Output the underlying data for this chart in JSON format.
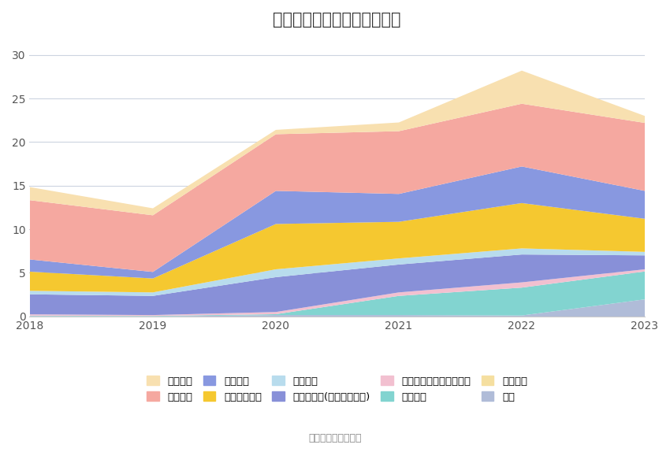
{
  "title": "历年主要负债堆积图（亿元）",
  "years": [
    2018,
    2019,
    2020,
    2021,
    2022,
    2023
  ],
  "series": [
    {
      "name": "其它",
      "color": "#b0bcd8",
      "values": [
        0.08,
        0.05,
        0.2,
        0.2,
        0.15,
        2.0
      ]
    },
    {
      "name": "应付债券",
      "color": "#f5dfa0",
      "values": [
        0.0,
        0.0,
        0.0,
        0.0,
        0.0,
        0.0
      ]
    },
    {
      "name": "长期借款",
      "color": "#82d4d0",
      "values": [
        0.05,
        0.05,
        0.1,
        2.2,
        3.2,
        3.2
      ]
    },
    {
      "name": "一年内到期的非流动负债",
      "color": "#f2c0d0",
      "values": [
        0.15,
        0.1,
        0.25,
        0.4,
        0.6,
        0.25
      ]
    },
    {
      "name": "其他应付款(含利息和股利)",
      "color": "#8890d8",
      "values": [
        2.3,
        2.2,
        4.0,
        3.2,
        3.2,
        1.6
      ]
    },
    {
      "name": "应交税费",
      "color": "#b8dced",
      "values": [
        0.4,
        0.4,
        0.9,
        0.7,
        0.7,
        0.4
      ]
    },
    {
      "name": "应付职工薪酬",
      "color": "#f5c830",
      "values": [
        2.2,
        1.6,
        5.2,
        4.2,
        5.2,
        3.8
      ]
    },
    {
      "name": "合同负债",
      "color": "#8898e0",
      "values": [
        1.4,
        0.75,
        3.8,
        3.2,
        4.2,
        3.2
      ]
    },
    {
      "name": "应付账款",
      "color": "#f5a8a0",
      "values": [
        6.8,
        6.5,
        6.5,
        7.2,
        7.2,
        7.8
      ]
    },
    {
      "name": "短期借款",
      "color": "#f8e0b0",
      "values": [
        1.5,
        0.8,
        0.5,
        1.0,
        3.8,
        0.8
      ]
    }
  ],
  "legend_order": [
    "短期借款",
    "应付账款",
    "合同负债",
    "应付职工薪酬",
    "应交税费",
    "其他应付款(含利息和股利)",
    "一年内到期的非流动负债",
    "长期借款",
    "应付债券",
    "其它"
  ],
  "ylim": [
    0,
    32
  ],
  "yticks": [
    0,
    5,
    10,
    15,
    20,
    25,
    30
  ],
  "source_text": "数据来源：恒生聚源",
  "background_color": "#ffffff",
  "grid_color": "#ccd4e0",
  "title_fontsize": 15,
  "axis_fontsize": 10,
  "legend_fontsize": 9.5
}
